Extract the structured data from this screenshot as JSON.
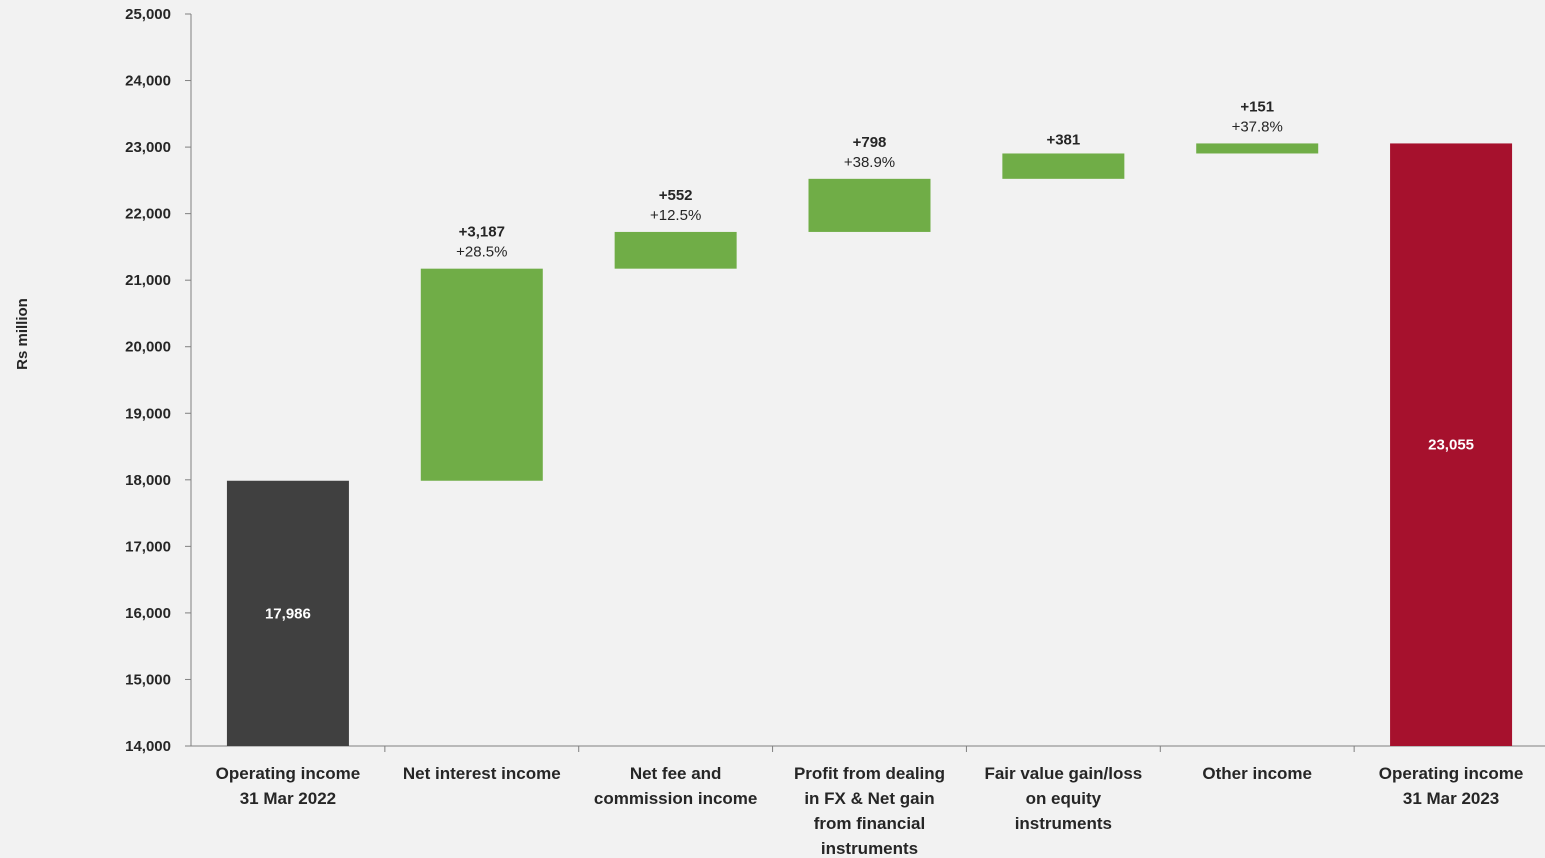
{
  "chart_data": {
    "type": "bar",
    "subtype": "waterfall",
    "title": "",
    "xlabel": "",
    "ylabel": "Rs million",
    "ylim": [
      14000,
      25000
    ],
    "yticks": [
      14000,
      15000,
      16000,
      17000,
      18000,
      19000,
      20000,
      21000,
      22000,
      23000,
      24000,
      25000
    ],
    "ytick_labels": [
      "14,000",
      "15,000",
      "16,000",
      "17,000",
      "18,000",
      "19,000",
      "20,000",
      "21,000",
      "22,000",
      "23,000",
      "24,000",
      "25,000"
    ],
    "grid": false,
    "legend": "none",
    "categories": [
      [
        "Operating income",
        "31 Mar 2022"
      ],
      [
        "Net interest income"
      ],
      [
        "Net fee and",
        "commission income"
      ],
      [
        "Profit from dealing",
        "in FX & Net gain",
        "from financial",
        "instruments"
      ],
      [
        "Fair value gain/loss",
        "on equity",
        "instruments"
      ],
      [
        "Other income"
      ],
      [
        "Operating income",
        "31 Mar 2023"
      ]
    ],
    "bars": [
      {
        "kind": "total",
        "start": 14000,
        "end": 17986,
        "label": "17,986",
        "pct": "",
        "color": "#404040"
      },
      {
        "kind": "delta",
        "start": 17986,
        "end": 21173,
        "label": "+3,187",
        "pct": "+28.5%",
        "color": "#70ad47"
      },
      {
        "kind": "delta",
        "start": 21173,
        "end": 21725,
        "label": "+552",
        "pct": "+12.5%",
        "color": "#70ad47"
      },
      {
        "kind": "delta",
        "start": 21725,
        "end": 22523,
        "label": "+798",
        "pct": "+38.9%",
        "color": "#70ad47"
      },
      {
        "kind": "delta",
        "start": 22523,
        "end": 22904,
        "label": "+381",
        "pct": "",
        "color": "#70ad47"
      },
      {
        "kind": "delta",
        "start": 22904,
        "end": 23055,
        "label": "+151",
        "pct": "+37.8%",
        "color": "#70ad47"
      },
      {
        "kind": "total",
        "start": 14000,
        "end": 23055,
        "label": "23,055",
        "pct": "",
        "color": "#a6112d"
      }
    ]
  }
}
